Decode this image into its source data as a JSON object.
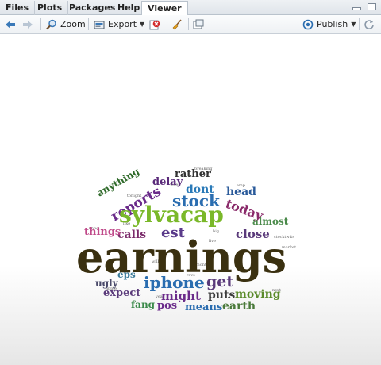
{
  "tabs": [
    "Files",
    "Plots",
    "Packages",
    "Help",
    "Viewer"
  ],
  "active_tab": "Viewer",
  "toolbar": {
    "zoom_label": "Zoom",
    "export_label": "Export",
    "publish_label": "Publish"
  },
  "colors": {
    "accent_blue": "#3a79b8",
    "publish_blue": "#2a6db0",
    "delete_red": "#d22a2a"
  },
  "icons": [
    "back-arrow-icon",
    "forward-arrow-icon",
    "zoom-icon",
    "export-icon",
    "delete-icon",
    "broom-icon",
    "new-window-icon",
    "publish-icon",
    "refresh-icon"
  ],
  "wordcloud": {
    "w1": "earnings",
    "w2": "sylvacap",
    "w3": "iphone",
    "w4": "stock",
    "w5": "reports",
    "w6": "today",
    "w7": "get",
    "w8": "est",
    "w9": "calls",
    "w10": "things",
    "w11": "anything",
    "w12": "dont",
    "w13": "rather",
    "w14": "delay",
    "w15": "close",
    "w16": "almost",
    "w17": "head",
    "w18": "might",
    "w19": "puts",
    "w20": "expect",
    "w21": "eps",
    "w22": "means",
    "w23": "moving",
    "w24": "earth",
    "w25": "pos",
    "w26": "fang",
    "w27": "ugly",
    "w28": "will",
    "w29": "live",
    "w30": "stocktwits",
    "w31": "like",
    "w32": "revs",
    "w33": "big",
    "w34": "month",
    "w35": "tonight",
    "w36": "year",
    "w37": "breaking",
    "w38": "amp",
    "w39": "cnbc",
    "w40": "market",
    "w41": "apple",
    "w42": "next",
    "w43": "week"
  }
}
